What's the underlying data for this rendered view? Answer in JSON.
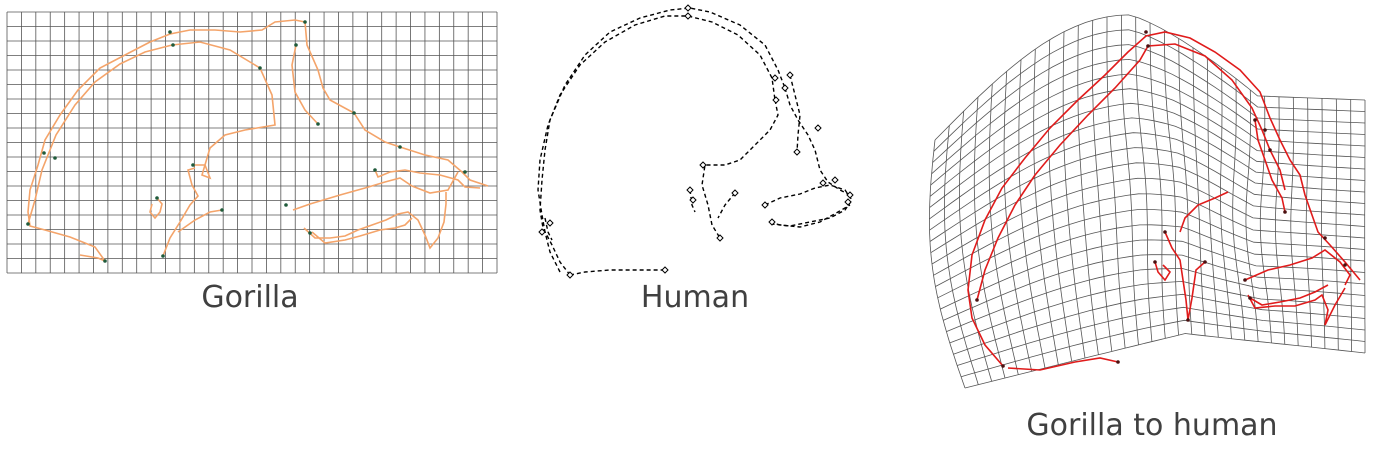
{
  "figure": {
    "panels": [
      {
        "caption": "Gorilla",
        "grid_cols": 34,
        "grid_rows": 18
      },
      {
        "caption": "Human"
      },
      {
        "caption": "Gorilla to human",
        "grid_cols": 30,
        "grid_rows": 22
      }
    ],
    "colors": {
      "grid": "#555555",
      "gorilla_outline": "#f4a46a",
      "gorilla_landmark": "#1f5a3a",
      "human_outline": "#000000",
      "warped_outline": "#e01b1b",
      "caption": "#404040"
    }
  }
}
